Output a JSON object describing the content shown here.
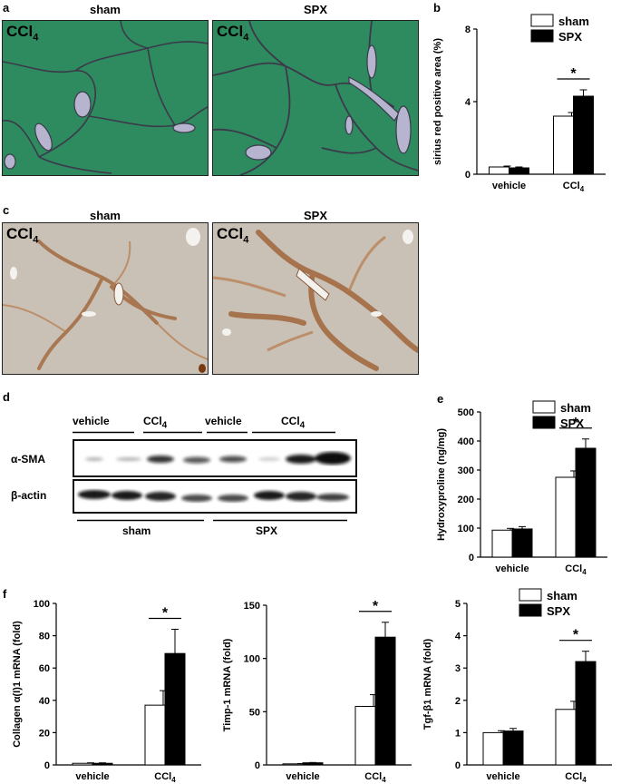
{
  "panels": {
    "a": {
      "label": "a",
      "titles": [
        "sham",
        "SPX"
      ],
      "overlay": "CCl",
      "overlay_sub": "4"
    },
    "b": {
      "label": "b"
    },
    "c": {
      "label": "c",
      "titles": [
        "sham",
        "SPX"
      ],
      "overlay": "CCl",
      "overlay_sub": "4"
    },
    "d": {
      "label": "d",
      "lane_groups": [
        "vehicle",
        "CCl",
        "vehicle",
        "CCl"
      ],
      "lane_groups_sub": [
        "",
        "4",
        "",
        "4"
      ],
      "rows": [
        "α-SMA",
        "β-actin"
      ],
      "bottom_groups": [
        "sham",
        "SPX"
      ]
    },
    "e": {
      "label": "e"
    },
    "f": {
      "label": "f"
    }
  },
  "legend": {
    "sham": "sham",
    "spx": "SPX"
  },
  "colors": {
    "sham": "#ffffff",
    "spx": "#000000",
    "sirius_bg": "#2e8a5f",
    "ihc_bg": "#c9c0b6"
  },
  "chart_data": [
    {
      "id": "b",
      "type": "bar",
      "categories": [
        "vehicle",
        "CCl4"
      ],
      "ylabel": "sirius red positive area (%)",
      "ylim": [
        0,
        8
      ],
      "yticks": [
        0,
        4,
        8
      ],
      "series": [
        {
          "name": "sham",
          "values": [
            0.4,
            3.2
          ],
          "errors": [
            0.05,
            0.2
          ]
        },
        {
          "name": "SPX",
          "values": [
            0.35,
            4.3
          ],
          "errors": [
            0.05,
            0.35
          ]
        }
      ],
      "annotations": [
        "*"
      ],
      "legend": "top-right"
    },
    {
      "id": "e",
      "type": "bar",
      "categories": [
        "vehicle",
        "CCl4"
      ],
      "ylabel": "Hydroxyproline (ng/mg)",
      "ylim": [
        0,
        500
      ],
      "yticks": [
        0,
        100,
        200,
        300,
        400,
        500
      ],
      "series": [
        {
          "name": "sham",
          "values": [
            93,
            275
          ],
          "errors": [
            6,
            22
          ]
        },
        {
          "name": "SPX",
          "values": [
            97,
            375
          ],
          "errors": [
            8,
            32
          ]
        }
      ],
      "annotations": [
        "*"
      ],
      "legend": "top-right"
    },
    {
      "id": "f1",
      "type": "bar",
      "categories": [
        "vehicle",
        "CCl4"
      ],
      "ylabel": "Collagen α(I)1 mRNA (fold)",
      "ylim": [
        0,
        100
      ],
      "yticks": [
        0,
        20,
        40,
        60,
        80,
        100
      ],
      "series": [
        {
          "name": "sham",
          "values": [
            1,
            37
          ],
          "errors": [
            0.3,
            9
          ]
        },
        {
          "name": "SPX",
          "values": [
            1,
            69
          ],
          "errors": [
            0.3,
            15
          ]
        }
      ],
      "annotations": [
        "*"
      ]
    },
    {
      "id": "f2",
      "type": "bar",
      "categories": [
        "vehicle",
        "CCl4"
      ],
      "ylabel": "Timp-1 mRNA (fold)",
      "ylim": [
        0,
        150
      ],
      "yticks": [
        0,
        50,
        100,
        150
      ],
      "series": [
        {
          "name": "sham",
          "values": [
            1,
            55
          ],
          "errors": [
            0.3,
            11
          ]
        },
        {
          "name": "SPX",
          "values": [
            2,
            120
          ],
          "errors": [
            0.3,
            14
          ]
        }
      ],
      "annotations": [
        "*"
      ]
    },
    {
      "id": "f3",
      "type": "bar",
      "categories": [
        "vehicle",
        "CCl4"
      ],
      "ylabel": "Tgf-β1 mRNA (fold)",
      "ylim": [
        0,
        5
      ],
      "yticks": [
        0,
        1,
        2,
        3,
        4,
        5
      ],
      "series": [
        {
          "name": "sham",
          "values": [
            1.0,
            1.72
          ],
          "errors": [
            0.06,
            0.25
          ]
        },
        {
          "name": "SPX",
          "values": [
            1.05,
            3.2
          ],
          "errors": [
            0.08,
            0.32
          ]
        }
      ],
      "annotations": [
        "*"
      ],
      "legend": "top-right"
    }
  ]
}
